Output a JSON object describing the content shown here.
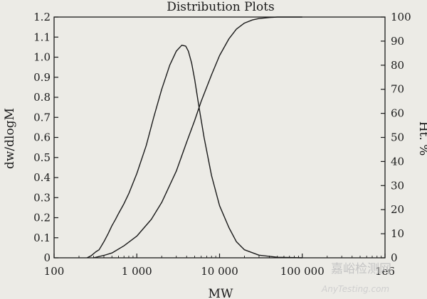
{
  "chart_data": {
    "type": "line",
    "title": "Distribution Plots",
    "xlabel": "MW",
    "ylabel_left": "dw/dlogM",
    "ylabel_right": "Ht. %",
    "x_scale": "log",
    "xlim": [
      100,
      1000000
    ],
    "ylim_left": [
      0,
      1.2
    ],
    "ylim_right": [
      0,
      100
    ],
    "x_ticks": [
      {
        "value": 100,
        "label": "100"
      },
      {
        "value": 1000,
        "label": "1 000"
      },
      {
        "value": 10000,
        "label": "10 000"
      },
      {
        "value": 100000,
        "label": "100 000"
      },
      {
        "value": 1000000,
        "label": "1e6"
      }
    ],
    "y_left_ticks": [
      "0",
      "0.1",
      "0.2",
      "0.3",
      "0.4",
      "0.5",
      "0.6",
      "0.7",
      "0.8",
      "0.9",
      "1.0",
      "1.1",
      "1.2"
    ],
    "y_right_ticks": [
      "0",
      "10",
      "20",
      "30",
      "40",
      "50",
      "60",
      "70",
      "80",
      "90",
      "100"
    ],
    "grid": false,
    "series": [
      {
        "axis": "left",
        "color": "#1a1a1a",
        "x": [
          250,
          280,
          320,
          350,
          400,
          450,
          500,
          550,
          600,
          700,
          800,
          1000,
          1300,
          1600,
          2000,
          2500,
          3000,
          3500,
          3900,
          4200,
          4600,
          5000,
          5600,
          6500,
          8000,
          10000,
          13000,
          16000,
          20000,
          30000,
          50000,
          80000,
          100000
        ],
        "y": [
          0,
          0.01,
          0.03,
          0.04,
          0.08,
          0.12,
          0.16,
          0.19,
          0.22,
          0.27,
          0.32,
          0.42,
          0.56,
          0.7,
          0.84,
          0.96,
          1.03,
          1.06,
          1.055,
          1.03,
          0.97,
          0.89,
          0.76,
          0.6,
          0.41,
          0.26,
          0.15,
          0.08,
          0.04,
          0.013,
          0.003,
          0.001,
          0
        ]
      },
      {
        "axis": "right",
        "color": "#1a1a1a",
        "x": [
          300,
          400,
          500,
          700,
          1000,
          1500,
          2000,
          3000,
          4000,
          5000,
          6000,
          8000,
          10000,
          13000,
          16000,
          20000,
          25000,
          30000,
          40000,
          50000,
          60000,
          80000,
          100000
        ],
        "y": [
          0,
          1,
          2,
          5,
          9,
          16,
          23,
          36,
          48,
          57,
          65,
          76,
          84,
          91,
          95,
          97.5,
          98.8,
          99.4,
          99.8,
          100,
          100,
          100,
          100
        ]
      }
    ]
  },
  "watermark": {
    "cn": "嘉峪检测网",
    "en": "AnyTesting.com"
  }
}
